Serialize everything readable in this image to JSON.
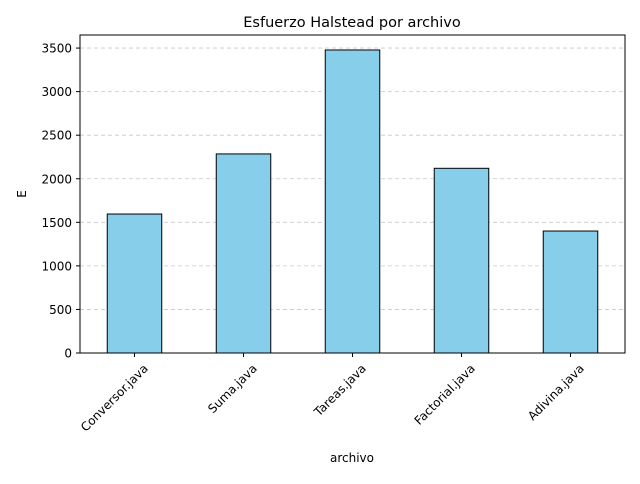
{
  "chart_data": {
    "type": "bar",
    "title": "Esfuerzo Halstead por archivo",
    "xlabel": "archivo",
    "ylabel": "E",
    "categories": [
      "Conversor.java",
      "Suma.java",
      "Tareas.java",
      "Factorial.java",
      "Adivina.java"
    ],
    "values": [
      1595,
      2285,
      3478,
      2120,
      1400
    ],
    "ylim": [
      0,
      3650
    ],
    "yticks": [
      0,
      500,
      1000,
      1500,
      2000,
      2500,
      3000,
      3500
    ],
    "ytick_labels": [
      "0",
      "500",
      "1000",
      "1500",
      "2000",
      "2500",
      "3000",
      "3500"
    ],
    "grid": "y-axis dashed",
    "legend": "none",
    "bar_color": "#87CEEB",
    "bar_edge_color": "#000000",
    "grid_color": "#c8c8c8",
    "xtick_rotation_deg": 45
  }
}
